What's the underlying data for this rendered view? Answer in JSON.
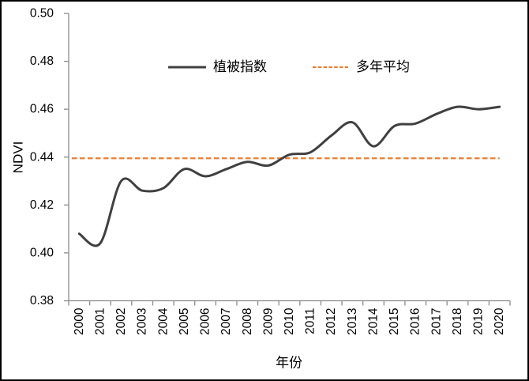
{
  "chart_data": {
    "type": "line",
    "title": "",
    "xlabel": "年份",
    "ylabel": "NDVI",
    "x_categories": [
      "2000",
      "2001",
      "2002",
      "2003",
      "2004",
      "2005",
      "2006",
      "2007",
      "2008",
      "2009",
      "2010",
      "2011",
      "2012",
      "2013",
      "2014",
      "2015",
      "2016",
      "2017",
      "2018",
      "2019",
      "2020"
    ],
    "ylim": [
      0.38,
      0.5
    ],
    "ytick_step": 0.02,
    "ytick_labels": [
      "0.38",
      "0.40",
      "0.42",
      "0.44",
      "0.46",
      "0.48",
      "0.50"
    ],
    "grid": false,
    "legend_position": "top-center",
    "axis_color": "#8C8C8C",
    "label_color": "#000000",
    "series": [
      {
        "name": "植被指数",
        "type": "smooth_line",
        "line_style": "solid",
        "color": "#404040",
        "line_width": 3,
        "values": [
          0.408,
          0.404,
          0.43,
          0.426,
          0.427,
          0.435,
          0.432,
          0.435,
          0.438,
          0.4365,
          0.441,
          0.442,
          0.449,
          0.4545,
          0.4445,
          0.453,
          0.454,
          0.458,
          0.461,
          0.46,
          0.461
        ]
      },
      {
        "name": "多年平均",
        "type": "horizontal_reference_line",
        "line_style": "dashed",
        "color": "#ED7D31",
        "line_width": 2.2,
        "value": 0.4395
      }
    ]
  }
}
